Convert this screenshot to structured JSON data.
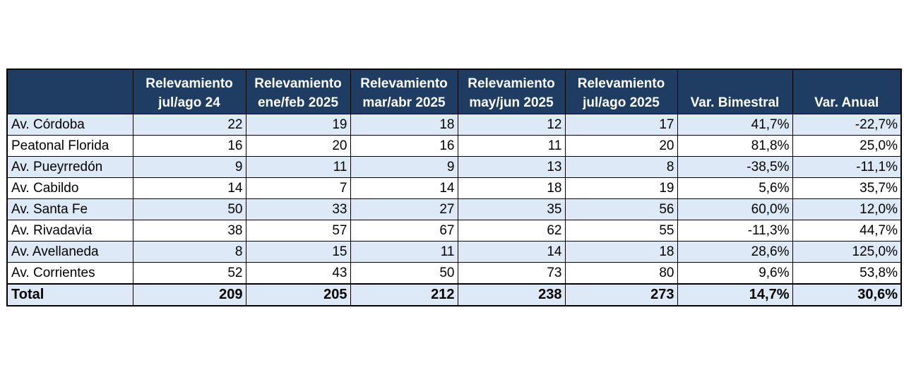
{
  "table": {
    "headers": [
      {
        "line1": "",
        "line2": ""
      },
      {
        "line1": "Relevamiento",
        "line2": "jul/ago 24"
      },
      {
        "line1": "Relevamiento",
        "line2": "ene/feb 2025"
      },
      {
        "line1": "Relevamiento",
        "line2": "mar/abr 2025"
      },
      {
        "line1": "Relevamiento",
        "line2": "may/jun 2025"
      },
      {
        "line1": "Relevamiento",
        "line2": "jul/ago 2025"
      },
      {
        "line1": "",
        "line2": "Var. Bimestral"
      },
      {
        "line1": "",
        "line2": "Var. Anual"
      }
    ],
    "rows": [
      [
        "Av. Córdoba",
        "22",
        "19",
        "18",
        "12",
        "17",
        "41,7%",
        "-22,7%"
      ],
      [
        "Peatonal Florida",
        "16",
        "20",
        "16",
        "11",
        "20",
        "81,8%",
        "25,0%"
      ],
      [
        "Av. Pueyrredón",
        "9",
        "11",
        "9",
        "13",
        "8",
        "-38,5%",
        "-11,1%"
      ],
      [
        "Av. Cabildo",
        "14",
        "7",
        "14",
        "18",
        "19",
        "5,6%",
        "35,7%"
      ],
      [
        "Av. Santa Fe",
        "50",
        "33",
        "27",
        "35",
        "56",
        "60,0%",
        "12,0%"
      ],
      [
        "Av. Rivadavia",
        "38",
        "57",
        "67",
        "62",
        "55",
        "-11,3%",
        "44,7%"
      ],
      [
        "Av. Avellaneda",
        "8",
        "15",
        "11",
        "14",
        "18",
        "28,6%",
        "125,0%"
      ],
      [
        "Av. Corrientes",
        "52",
        "43",
        "50",
        "73",
        "80",
        "9,6%",
        "53,8%"
      ]
    ],
    "total": [
      "Total",
      "209",
      "205",
      "212",
      "238",
      "273",
      "14,7%",
      "30,6%"
    ]
  },
  "colors": {
    "header_bg": "#1f3d62",
    "header_text": "#ffffff",
    "band_bg": "#dde9f6",
    "plain_bg": "#ffffff"
  }
}
